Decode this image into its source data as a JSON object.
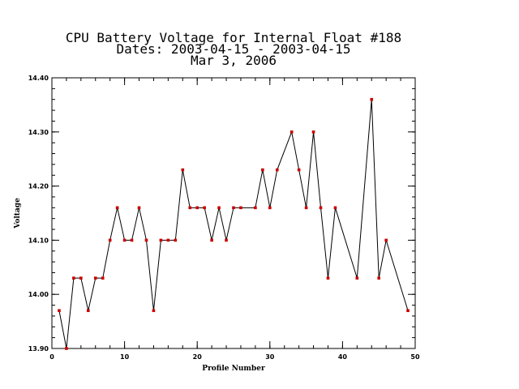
{
  "chart_data": {
    "type": "line",
    "title": [
      "CPU Battery Voltage for Internal Float #188",
      "Dates:  2003-04-15 -  2003-04-15",
      "Mar  3, 2006"
    ],
    "xlabel": "Profile Number",
    "ylabel": "Voltage",
    "xlim": [
      0,
      50
    ],
    "ylim": [
      13.9,
      14.4
    ],
    "x_ticks": [
      0,
      10,
      20,
      30,
      40,
      50
    ],
    "x_tick_labels": [
      "0",
      "10",
      "20",
      "30",
      "40",
      "50"
    ],
    "y_ticks": [
      13.9,
      14.0,
      14.1,
      14.2,
      14.3,
      14.4
    ],
    "y_tick_labels": [
      "13.90",
      "14.00",
      "14.10",
      "14.20",
      "14.30",
      "14.40"
    ],
    "x_minor_step": 2,
    "y_minor_step": 0.02,
    "line_color": "#000000",
    "marker_color": "#cc0000",
    "x": [
      1,
      2,
      3,
      4,
      5,
      6,
      7,
      8,
      9,
      10,
      11,
      12,
      13,
      14,
      15,
      16,
      17,
      18,
      19,
      20,
      21,
      22,
      23,
      24,
      25,
      26,
      28,
      29,
      30,
      31,
      33,
      34,
      35,
      36,
      37,
      38,
      39,
      42,
      44,
      45,
      46,
      49
    ],
    "y": [
      13.97,
      13.9,
      14.03,
      14.03,
      13.97,
      14.03,
      14.03,
      14.1,
      14.16,
      14.1,
      14.1,
      14.16,
      14.1,
      13.97,
      14.1,
      14.1,
      14.1,
      14.23,
      14.16,
      14.16,
      14.16,
      14.1,
      14.16,
      14.1,
      14.16,
      14.16,
      14.16,
      14.23,
      14.16,
      14.23,
      14.3,
      14.23,
      14.16,
      14.3,
      14.16,
      14.03,
      14.16,
      14.03,
      14.36,
      14.03,
      14.1,
      13.97
    ]
  }
}
